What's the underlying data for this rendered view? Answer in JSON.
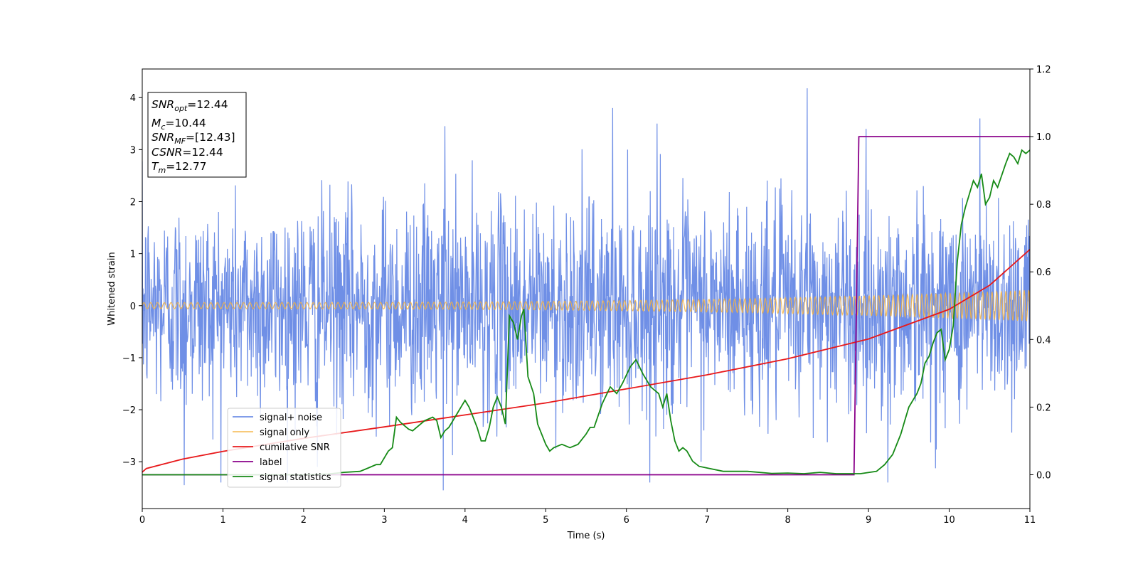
{
  "chart_data": {
    "type": "line",
    "xlabel": "Time (s)",
    "ylabel": "Whitened strain",
    "xlim": [
      0,
      11
    ],
    "ylim": [
      -3.9,
      4.55
    ],
    "y2lim": [
      -0.1,
      1.2
    ],
    "x_ticks": [
      0,
      1,
      2,
      3,
      4,
      5,
      6,
      7,
      8,
      9,
      10,
      11
    ],
    "x_tick_labels": [
      "0",
      "1",
      "2",
      "3",
      "4",
      "5",
      "6",
      "7",
      "8",
      "9",
      "10",
      "11"
    ],
    "y_ticks": [
      -3,
      -2,
      -1,
      0,
      1,
      2,
      3,
      4
    ],
    "y_tick_labels": [
      "−3",
      "−2",
      "−1",
      "0",
      "1",
      "2",
      "3",
      "4"
    ],
    "y2_ticks": [
      0.0,
      0.2,
      0.4,
      0.6,
      0.8,
      1.0,
      1.2
    ],
    "y2_tick_labels": [
      "0.0",
      "0.2",
      "0.4",
      "0.6",
      "0.8",
      "1.0",
      "1.2"
    ],
    "grid": false,
    "legend_position": "lower-left",
    "series": [
      {
        "name": "signal+ noise",
        "axis": "left",
        "color": "#6f8fe6",
        "style": "dense-noise",
        "sample_rate_hz": 200,
        "envelope_std": 1.0,
        "peaks": [
          {
            "x": 0.52,
            "y": -3.45
          },
          {
            "x": 3.73,
            "y": -3.55
          },
          {
            "x": 3.75,
            "y": 3.45
          },
          {
            "x": 5.83,
            "y": 3.8
          },
          {
            "x": 8.24,
            "y": 4.18
          },
          {
            "x": 10.38,
            "y": 3.6
          },
          {
            "x": 9.24,
            "y": -3.4
          },
          {
            "x": 2.17,
            "y": -3.1
          },
          {
            "x": 6.38,
            "y": 3.5
          }
        ]
      },
      {
        "name": "signal only",
        "axis": "left",
        "color": "#f5b342",
        "style": "chirp",
        "amplitude_start": 0.06,
        "amplitude_end": 0.3,
        "cycles": 130
      },
      {
        "name": "cumilative SNR",
        "axis": "left",
        "color": "#e8191b",
        "x": [
          0,
          0.05,
          0.5,
          1,
          2,
          3,
          4,
          5,
          6,
          7,
          8,
          9,
          10,
          10.5,
          11
        ],
        "values": [
          -3.2,
          -3.13,
          -2.95,
          -2.8,
          -2.55,
          -2.33,
          -2.1,
          -1.87,
          -1.6,
          -1.33,
          -1.02,
          -0.64,
          -0.07,
          0.39,
          1.08
        ]
      },
      {
        "name": "label",
        "axis": "right",
        "color": "#8a008a",
        "x": [
          0,
          8.82,
          8.88,
          11
        ],
        "values": [
          0.0,
          0.0,
          1.0,
          1.0
        ]
      },
      {
        "name": "signal statistics",
        "axis": "right",
        "color": "#168a16",
        "x": [
          0,
          0.5,
          1,
          1.5,
          2,
          2.3,
          2.5,
          2.7,
          2.8,
          2.9,
          2.95,
          3.05,
          3.1,
          3.15,
          3.2,
          3.3,
          3.35,
          3.4,
          3.5,
          3.6,
          3.65,
          3.7,
          3.75,
          3.8,
          3.9,
          3.95,
          4.0,
          4.05,
          4.1,
          4.15,
          4.2,
          4.25,
          4.3,
          4.35,
          4.4,
          4.45,
          4.5,
          4.55,
          4.6,
          4.65,
          4.7,
          4.73,
          4.78,
          4.85,
          4.9,
          4.95,
          5.0,
          5.05,
          5.1,
          5.15,
          5.2,
          5.3,
          5.4,
          5.5,
          5.55,
          5.6,
          5.7,
          5.8,
          5.88,
          5.95,
          6.05,
          6.12,
          6.2,
          6.3,
          6.4,
          6.45,
          6.5,
          6.55,
          6.6,
          6.65,
          6.7,
          6.75,
          6.82,
          6.9,
          7.0,
          7.2,
          7.5,
          7.8,
          8.0,
          8.2,
          8.4,
          8.6,
          8.9,
          9.1,
          9.2,
          9.3,
          9.4,
          9.45,
          9.5,
          9.6,
          9.65,
          9.7,
          9.75,
          9.8,
          9.85,
          9.9,
          9.95,
          10.0,
          10.05,
          10.1,
          10.15,
          10.2,
          10.25,
          10.3,
          10.35,
          10.4,
          10.45,
          10.5,
          10.55,
          10.6,
          10.7,
          10.75,
          10.8,
          10.85,
          10.9,
          10.95,
          11.0
        ],
        "values": [
          0.0,
          0.0,
          0.0,
          0.0,
          0.0,
          0.002,
          0.007,
          0.01,
          0.02,
          0.03,
          0.03,
          0.07,
          0.08,
          0.17,
          0.155,
          0.135,
          0.13,
          0.14,
          0.16,
          0.17,
          0.16,
          0.11,
          0.13,
          0.14,
          0.18,
          0.2,
          0.22,
          0.2,
          0.17,
          0.14,
          0.1,
          0.1,
          0.14,
          0.2,
          0.23,
          0.2,
          0.15,
          0.47,
          0.45,
          0.4,
          0.47,
          0.49,
          0.29,
          0.24,
          0.15,
          0.12,
          0.09,
          0.07,
          0.08,
          0.085,
          0.09,
          0.08,
          0.09,
          0.12,
          0.14,
          0.14,
          0.21,
          0.26,
          0.24,
          0.27,
          0.32,
          0.34,
          0.3,
          0.26,
          0.24,
          0.2,
          0.24,
          0.16,
          0.1,
          0.07,
          0.08,
          0.07,
          0.04,
          0.025,
          0.02,
          0.01,
          0.01,
          0.004,
          0.005,
          0.003,
          0.007,
          0.003,
          0.003,
          0.01,
          0.03,
          0.06,
          0.12,
          0.16,
          0.2,
          0.24,
          0.27,
          0.33,
          0.35,
          0.39,
          0.42,
          0.43,
          0.34,
          0.37,
          0.44,
          0.63,
          0.74,
          0.79,
          0.83,
          0.87,
          0.85,
          0.89,
          0.8,
          0.82,
          0.87,
          0.85,
          0.92,
          0.95,
          0.94,
          0.92,
          0.96,
          0.95,
          0.96
        ]
      }
    ],
    "annotation": {
      "lines": [
        {
          "key": "SNR",
          "sub": "opt",
          "value": "=12.44"
        },
        {
          "key": "M",
          "sub": "c",
          "value": "=10.44"
        },
        {
          "key": "SNR",
          "sub": "MF",
          "value": "=[12.43]"
        },
        {
          "key": "CSNR",
          "sub": "",
          "value": "=12.44"
        },
        {
          "key": "T",
          "sub": "m",
          "value": "=12.77"
        }
      ]
    }
  }
}
